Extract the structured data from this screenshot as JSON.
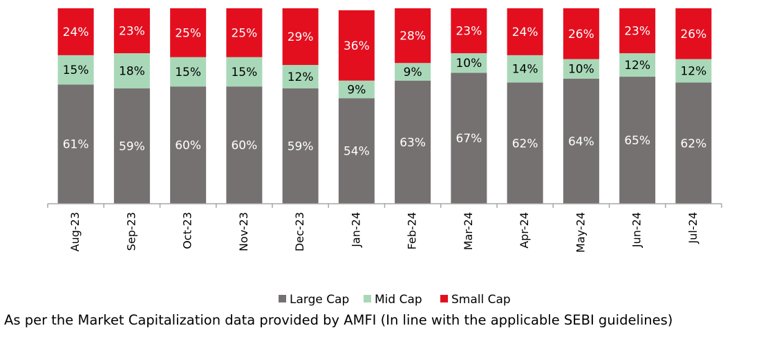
{
  "chart_data": {
    "type": "bar",
    "stacked": true,
    "categories": [
      "Aug-23",
      "Sep-23",
      "Oct-23",
      "Nov-23",
      "Dec-23",
      "Jan-24",
      "Feb-24",
      "Mar-24",
      "Apr-24",
      "May-24",
      "Jun-24",
      "Jul-24"
    ],
    "series": [
      {
        "name": "Large Cap",
        "color": "#767171",
        "label_color": "#ffffff",
        "values": [
          61,
          59,
          60,
          60,
          59,
          54,
          63,
          67,
          62,
          64,
          65,
          62
        ],
        "labels": [
          "61%",
          "59%",
          "60%",
          "60%",
          "59%",
          "54%",
          "63%",
          "67%",
          "62%",
          "64%",
          "65%",
          "62%"
        ]
      },
      {
        "name": "Mid Cap",
        "color": "#a9d8b8",
        "label_color": "#000000",
        "values": [
          15,
          18,
          15,
          15,
          12,
          9,
          9,
          10,
          14,
          10,
          12,
          12
        ],
        "labels": [
          "15%",
          "18%",
          "15%",
          "15%",
          "12%",
          "9%",
          "9%",
          "10%",
          "14%",
          "10%",
          "12%",
          "12%"
        ]
      },
      {
        "name": "Small Cap",
        "color": "#e30f1f",
        "label_color": "#ffffff",
        "values": [
          24,
          23,
          25,
          25,
          29,
          36,
          28,
          23,
          24,
          26,
          23,
          26
        ],
        "labels": [
          "24%",
          "23%",
          "25%",
          "25%",
          "29%",
          "36%",
          "28%",
          "23%",
          "24%",
          "26%",
          "23%",
          "26%"
        ]
      }
    ],
    "ylim": [
      0,
      100
    ],
    "grid": false,
    "legend_position": "bottom"
  },
  "footnote": "As per the Market Capitalization data provided by AMFI (In line with the applicable SEBI guidelines)"
}
